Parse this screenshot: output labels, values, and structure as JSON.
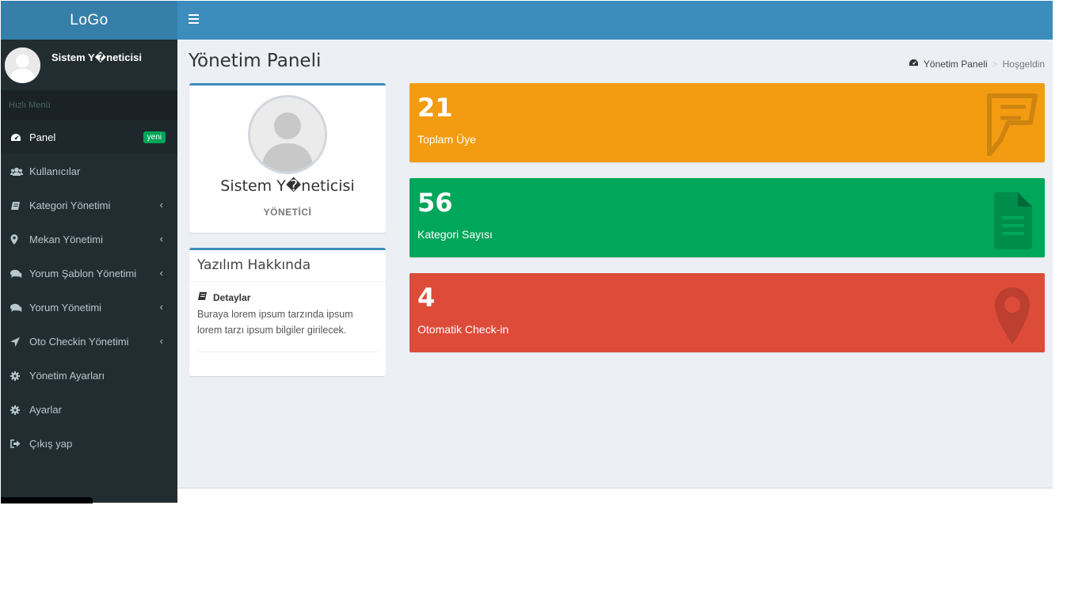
{
  "header": {
    "logo": "LoGo",
    "toggle_icon": "bars-icon"
  },
  "sidebar": {
    "user_name": "Sistem Y�neticisi",
    "menu_header": "Hızlı Menü",
    "items": [
      {
        "label": "Panel",
        "icon": "dashboard-icon",
        "badge": "yeni"
      },
      {
        "label": "Kullanıcılar",
        "icon": "users-icon"
      },
      {
        "label": "Kategori Yönetimi",
        "icon": "book-icon",
        "has_submenu": true
      },
      {
        "label": "Mekan Yönetimi",
        "icon": "map-marker-icon",
        "has_submenu": true
      },
      {
        "label": "Yorum Şablon Yönetimi",
        "icon": "comments-icon",
        "has_submenu": true
      },
      {
        "label": "Yorum Yönetimi",
        "icon": "comments-icon",
        "has_submenu": true
      },
      {
        "label": "Oto Checkin Yönetimi",
        "icon": "location-arrow-icon",
        "has_submenu": true
      },
      {
        "label": "Yönetim Ayarları",
        "icon": "gear-icon"
      },
      {
        "label": "Ayarlar",
        "icon": "gear-icon"
      },
      {
        "label": "Çıkış yap",
        "icon": "sign-out-icon"
      }
    ],
    "chevron": "‹"
  },
  "content": {
    "title": "Yönetim Paneli",
    "breadcrumb": {
      "root": "Yönetim Paneli",
      "separator": ">",
      "current": "Hoşgeldin"
    },
    "profile": {
      "name": "Sistem Y�neticisi",
      "role": "YÖNETİCİ"
    },
    "about": {
      "title": "Yazılım Hakkında",
      "subtitle": "Detaylar",
      "text": "Buraya lorem ipsum tarzında ipsum lorem tarzı ipsum bilgiler girilecek."
    },
    "stats": [
      {
        "value": "21",
        "label": "Toplam Üye",
        "color": "#f39c12",
        "icon": "foursquare-icon"
      },
      {
        "value": "56",
        "label": "Kategori Sayısı",
        "color": "#00a65a",
        "icon": "file-text-icon"
      },
      {
        "value": "4",
        "label": "Otomatik Check-in",
        "color": "#dd4b39",
        "icon": "map-marker-icon"
      }
    ]
  },
  "colors": {
    "header_bg": "#3c8dbc",
    "logo_bg": "#367fa9",
    "sidebar_bg": "#222d32",
    "content_bg": "#ecf0f5"
  }
}
